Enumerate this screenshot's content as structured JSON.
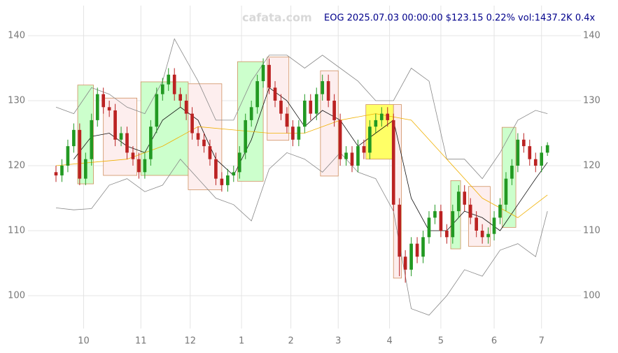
{
  "chart_data": {
    "type": "candlestick",
    "title": "EOG 2025.07.03 00:00:00 $123.15 0.22% vol:1437.2K 0.4x",
    "watermark": "cafata.com",
    "x": [
      0,
      3,
      6,
      9,
      12,
      15,
      18,
      21,
      24,
      27,
      30,
      33,
      36,
      39,
      42,
      45,
      48,
      51,
      54,
      57,
      60,
      63,
      66,
      69,
      72,
      75,
      78,
      81,
      84,
      87,
      90,
      93,
      96,
      99,
      102,
      105,
      108,
      111,
      114,
      117,
      120,
      123,
      126,
      129,
      132,
      135,
      138,
      141,
      144,
      147,
      150,
      153,
      156,
      159,
      162,
      165,
      168,
      171,
      174,
      177,
      180,
      183,
      186,
      189,
      192,
      195,
      198,
      201,
      204,
      207,
      210,
      213,
      216,
      219,
      222,
      225,
      228,
      231,
      234,
      237,
      240,
      243,
      246,
      249
    ],
    "open": [
      119,
      118.5,
      120,
      123,
      125.5,
      118,
      121,
      127,
      131,
      129,
      128.5,
      124,
      125,
      122,
      121,
      119,
      121,
      126,
      131,
      132.5,
      134,
      131,
      130,
      128,
      125,
      124,
      123,
      121,
      118,
      117,
      118.5,
      119,
      122,
      127,
      129,
      133,
      135.5,
      132,
      130,
      128,
      126,
      124,
      126,
      130,
      128,
      131,
      133,
      130,
      127,
      121,
      122,
      120,
      123,
      122,
      126,
      127,
      128,
      127,
      114,
      106,
      104,
      108,
      106,
      109,
      112,
      113,
      110,
      109,
      113,
      116,
      114,
      112,
      110,
      109,
      109.5,
      112,
      114,
      118,
      120,
      124,
      123,
      121,
      120,
      122
    ],
    "high": [
      120,
      121,
      124,
      126.5,
      126.5,
      122,
      128,
      132,
      132,
      130,
      129.5,
      126,
      126,
      123,
      122,
      122,
      127,
      132,
      133.5,
      135,
      135,
      132,
      131,
      129,
      126,
      125,
      124,
      122,
      119,
      119.5,
      120,
      123,
      128,
      130,
      134,
      136.5,
      136.5,
      133,
      131,
      129,
      127,
      127,
      131,
      131,
      132,
      134,
      134,
      131,
      128,
      123,
      123,
      124,
      124,
      127,
      128,
      129,
      129,
      128,
      115,
      107,
      109,
      109,
      110,
      113,
      114,
      114,
      111,
      114,
      117,
      117,
      115,
      113,
      111,
      110.5,
      113,
      115,
      119,
      121,
      125,
      125,
      124,
      122,
      123,
      123.6
    ],
    "low": [
      117.5,
      117.5,
      119,
      122,
      117,
      117,
      120,
      126,
      128,
      127.5,
      123,
      123,
      121,
      120,
      118,
      118,
      120,
      125,
      130,
      131.5,
      130,
      129,
      127,
      124,
      123,
      122,
      120,
      117,
      116,
      116,
      117.5,
      118,
      121,
      126,
      128,
      132,
      131,
      129,
      127,
      125,
      123,
      123,
      125,
      127,
      127,
      130,
      129,
      126,
      120,
      120,
      119,
      119,
      121,
      121,
      125,
      126,
      126,
      113,
      103,
      102,
      103,
      105,
      105,
      108,
      111,
      109,
      108,
      108,
      112,
      113,
      111,
      109,
      108,
      108,
      108.5,
      111,
      113,
      117,
      119,
      122,
      120,
      119,
      119,
      121.5
    ],
    "close": [
      118.5,
      120,
      123,
      125.5,
      118,
      121,
      127,
      131,
      129,
      128.5,
      124,
      125,
      122,
      121,
      119,
      121,
      126,
      131,
      132.5,
      134,
      131,
      130,
      128,
      125,
      124,
      123,
      121,
      118,
      117,
      118.5,
      119,
      122,
      127,
      129,
      133,
      135.5,
      132,
      130,
      128,
      126,
      124,
      126,
      130,
      128,
      131,
      133,
      130,
      127,
      121,
      122,
      120,
      123,
      122,
      126,
      127,
      128,
      127,
      114,
      106,
      104,
      108,
      106,
      109,
      112,
      113,
      110,
      109,
      113,
      116,
      114,
      112,
      110,
      109,
      109.5,
      112,
      114,
      118,
      120,
      124,
      123,
      121,
      120,
      122,
      123.15
    ],
    "up_color": "#229922",
    "down_color": "#bb2222",
    "xlim": [
      0,
      250
    ],
    "xticks": [
      {
        "value": 14,
        "label": "10"
      },
      {
        "value": 43,
        "label": "11"
      },
      {
        "value": 68,
        "label": "12"
      },
      {
        "value": 94,
        "label": "1"
      },
      {
        "value": 119,
        "label": "2"
      },
      {
        "value": 143,
        "label": "3"
      },
      {
        "value": 169,
        "label": "4"
      },
      {
        "value": 195,
        "label": "5"
      },
      {
        "value": 222,
        "label": "6"
      },
      {
        "value": 246,
        "label": "7"
      }
    ],
    "ylim": [
      95,
      145
    ],
    "yticks": [
      100,
      110,
      120,
      130,
      140
    ],
    "grid": true,
    "boxes": [
      {
        "x": [
          11,
          19
        ],
        "y": [
          117.2,
          132.4
        ],
        "color": "#ccffcc"
      },
      {
        "x": [
          24,
          41
        ],
        "y": [
          118.5,
          130.4
        ],
        "color": "#fdeeee"
      },
      {
        "x": [
          43,
          67
        ],
        "y": [
          118.5,
          132.9
        ],
        "color": "#ccffcc"
      },
      {
        "x": [
          67,
          84
        ],
        "y": [
          116.3,
          132.6
        ],
        "color": "#fdeeee"
      },
      {
        "x": [
          92,
          105
        ],
        "y": [
          117.6,
          136.0
        ],
        "color": "#ccffcc"
      },
      {
        "x": [
          107,
          118
        ],
        "y": [
          123.9,
          136.7
        ],
        "color": "#fdeeee"
      },
      {
        "x": [
          134,
          143
        ],
        "y": [
          118.4,
          134.6
        ],
        "color": "#fdeeee"
      },
      {
        "x": [
          157,
          171
        ],
        "y": [
          121.0,
          129.4
        ],
        "color": "#ffff66"
      },
      {
        "x": [
          171,
          175
        ],
        "y": [
          102.7,
          129.4
        ],
        "color": "#fdeeee"
      },
      {
        "x": [
          200,
          205
        ],
        "y": [
          107.2,
          117.7
        ],
        "color": "#ccffcc"
      },
      {
        "x": [
          209,
          220
        ],
        "y": [
          107.6,
          116.8
        ],
        "color": "#fdeeee"
      },
      {
        "x": [
          226,
          233
        ],
        "y": [
          110.5,
          125.9
        ],
        "color": "#ccffcc"
      }
    ],
    "lines": [
      {
        "color": "#888888",
        "x": [
          0,
          9,
          18,
          27,
          36,
          45,
          54,
          60,
          72,
          81,
          90,
          99,
          108,
          117,
          126,
          135,
          144,
          153,
          162,
          171,
          180,
          189,
          198,
          207,
          216,
          225,
          234,
          243,
          249
        ],
        "values": [
          129,
          128,
          132,
          131,
          129,
          128,
          133,
          139.5,
          133,
          127,
          127,
          133,
          137,
          137,
          135,
          137,
          135,
          133,
          130,
          130,
          135,
          133,
          121,
          121,
          118,
          122,
          127,
          128.5,
          128
        ]
      },
      {
        "color": "#888888",
        "x": [
          0,
          9,
          18,
          27,
          36,
          45,
          54,
          63,
          72,
          81,
          90,
          99,
          108,
          117,
          126,
          135,
          144,
          153,
          162,
          171,
          180,
          189,
          198,
          207,
          216,
          225,
          234,
          243,
          249
        ],
        "values": [
          113.5,
          113.2,
          113.4,
          117,
          118,
          116,
          117,
          121,
          118,
          115,
          114,
          111.5,
          119.5,
          122,
          121,
          119,
          122,
          119,
          118,
          113,
          98,
          97,
          100,
          104,
          103,
          107,
          108,
          106,
          113
        ]
      },
      {
        "color": "#111111",
        "x": [
          9,
          18,
          27,
          36,
          45,
          54,
          63,
          72,
          81,
          90,
          99,
          108,
          117,
          126,
          135,
          144,
          153,
          162,
          171,
          180,
          189,
          198,
          207,
          216,
          225,
          234,
          243,
          249
        ],
        "values": [
          121,
          124.5,
          125,
          123,
          122,
          127,
          129,
          127,
          121,
          118.5,
          124,
          132,
          130,
          126,
          128.5,
          127,
          123,
          125,
          127,
          115,
          110,
          110,
          113,
          112,
          110,
          114,
          118,
          120.5
        ]
      },
      {
        "color": "#f0b000",
        "x": [
          0,
          18,
          36,
          54,
          72,
          90,
          108,
          126,
          144,
          162,
          180,
          198,
          216,
          234,
          249
        ],
        "values": [
          120,
          120.5,
          121,
          123,
          126,
          125.5,
          125,
          125,
          127,
          128,
          127,
          121,
          115,
          112,
          115.5
        ]
      }
    ]
  }
}
